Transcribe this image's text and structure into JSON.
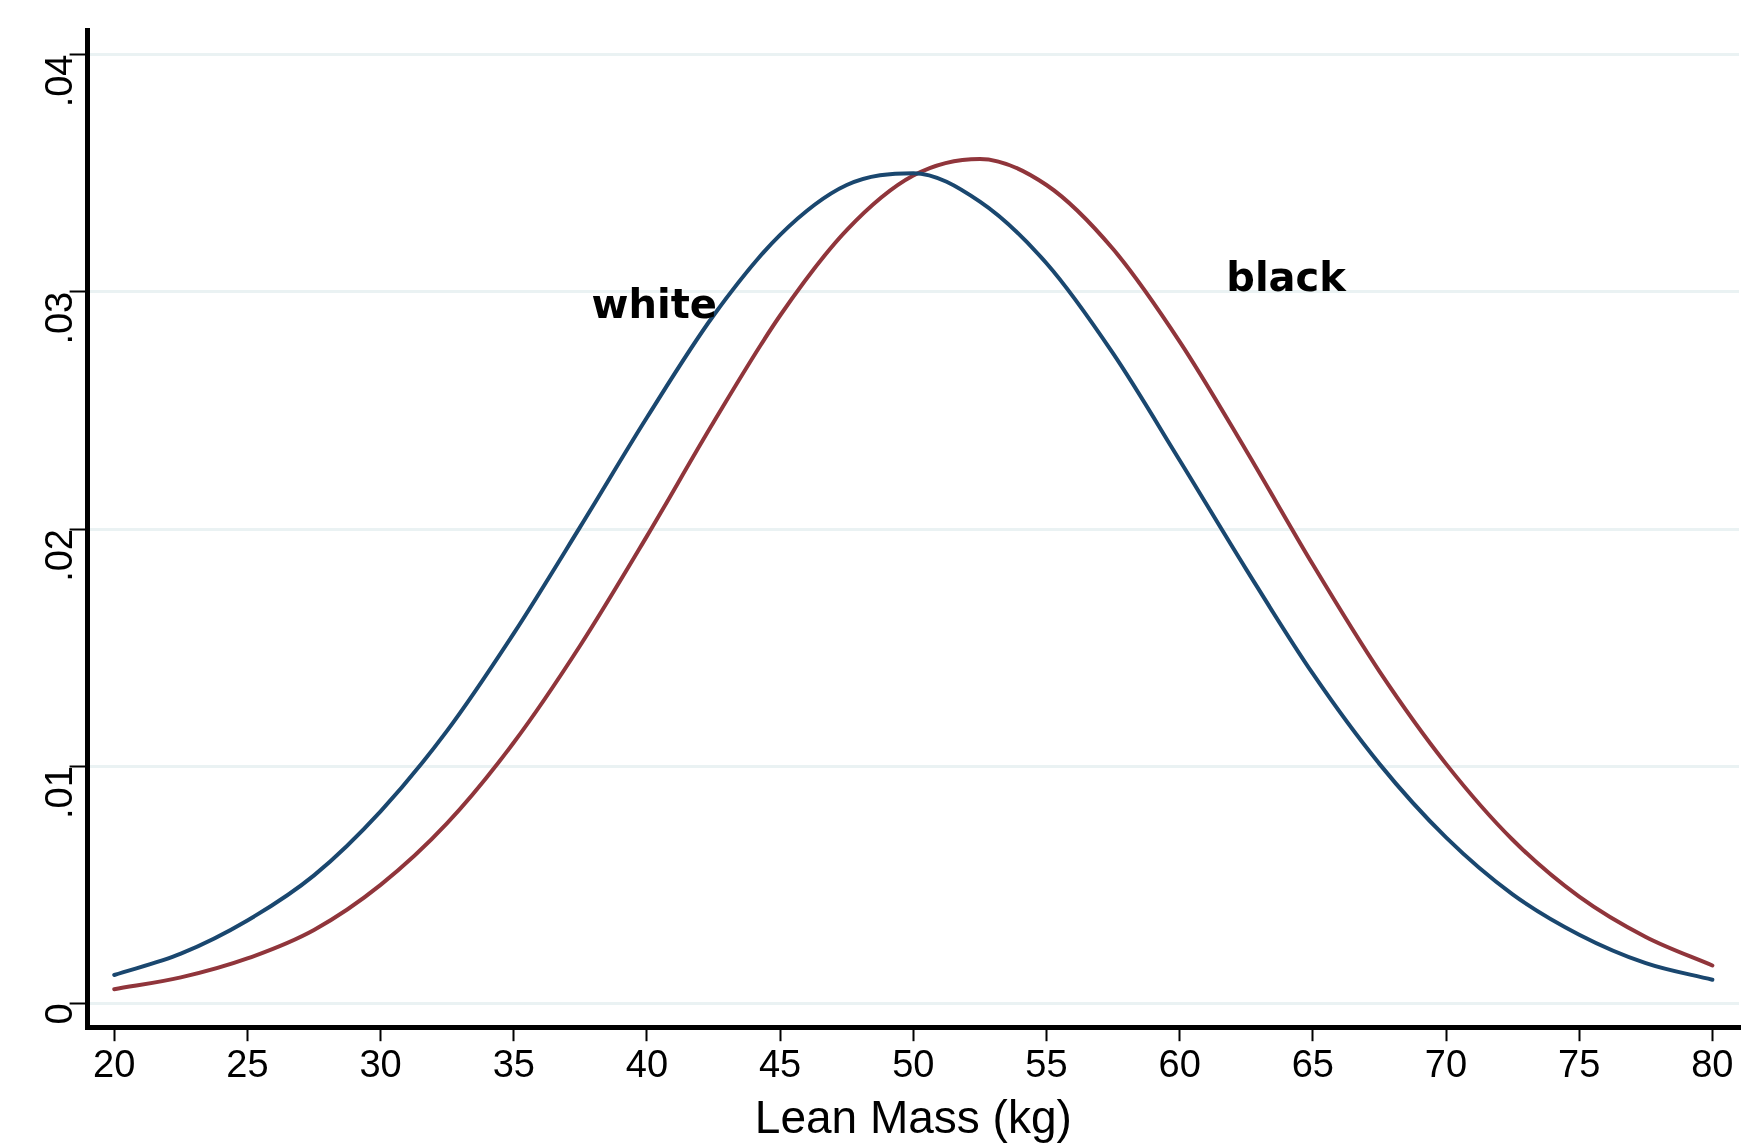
{
  "chart_data": {
    "type": "line",
    "xlabel": "Lean Mass (kg)",
    "x": [
      20,
      22.5,
      25,
      27.5,
      30,
      32.5,
      35,
      37.5,
      40,
      42.5,
      45,
      47.5,
      50,
      52.5,
      55,
      57.5,
      60,
      62.5,
      65,
      67.5,
      70,
      72.5,
      75,
      77.5,
      80
    ],
    "series": [
      {
        "name": "white",
        "color": "#1a476f",
        "values": [
          0.0012,
          0.0021,
          0.0035,
          0.0054,
          0.0081,
          0.0115,
          0.0156,
          0.0201,
          0.0247,
          0.029,
          0.0324,
          0.0345,
          0.035,
          0.0338,
          0.0312,
          0.0274,
          0.0229,
          0.0183,
          0.0139,
          0.0101,
          0.007,
          0.0046,
          0.0029,
          0.0017,
          0.001
        ]
      },
      {
        "name": "black",
        "color": "#90353b",
        "values": [
          0.0006,
          0.0011,
          0.0019,
          0.0031,
          0.005,
          0.0076,
          0.011,
          0.0151,
          0.0197,
          0.0245,
          0.029,
          0.0326,
          0.0349,
          0.0356,
          0.0345,
          0.0318,
          0.0279,
          0.0233,
          0.0185,
          0.014,
          0.0101,
          0.0069,
          0.0045,
          0.0028,
          0.0016
        ]
      }
    ],
    "xlim": [
      19,
      81
    ],
    "xticks": [
      20,
      25,
      30,
      35,
      40,
      45,
      50,
      55,
      60,
      65,
      70,
      75,
      80
    ],
    "ylim": [
      -0.001,
      0.041
    ],
    "yticks": [
      {
        "value": 0,
        "label": "0"
      },
      {
        "value": 0.01,
        "label": ".01"
      },
      {
        "value": 0.02,
        "label": ".02"
      },
      {
        "value": 0.03,
        "label": ".03"
      },
      {
        "value": 0.04,
        "label": ".04"
      }
    ],
    "grid": "y",
    "marker": "none",
    "line_style": "solid"
  }
}
